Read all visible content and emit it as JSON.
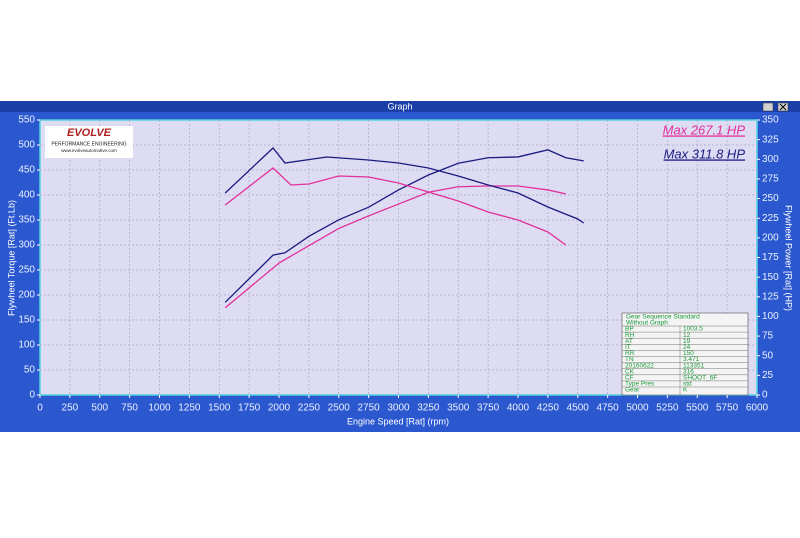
{
  "window": {
    "title": "Graph"
  },
  "logo": {
    "brand": "EVOLVE",
    "tagline": "PERFORMANCE ENGINEERING",
    "url": "www.evolveautomotive.com"
  },
  "info_table": {
    "header": [
      "Gear Sequence Standard",
      "Without Graph"
    ],
    "rows": [
      [
        "BP",
        "1003.5"
      ],
      [
        "RH",
        "12"
      ],
      [
        "AT",
        "19"
      ],
      [
        "IT",
        "24"
      ],
      [
        "RR",
        "150"
      ],
      [
        "TN",
        "3.471"
      ],
      [
        "20160622",
        "113351"
      ],
      [
        "CK",
        "316"
      ],
      [
        "CF",
        "SHOOT_6F"
      ],
      [
        "Type Pres",
        "std"
      ],
      [
        "Gear",
        "K"
      ]
    ]
  },
  "chart_data": {
    "type": "line",
    "xlabel": "Engine Speed [Rat] (rpm)",
    "ylabel": "Flywheel Torque [Rat] (Ft.Lb)",
    "y2label": "Flywheel Power [Rat] (HP)",
    "xlim": [
      0,
      6000
    ],
    "xticks": [
      0,
      250,
      500,
      750,
      1000,
      1250,
      1500,
      1750,
      2000,
      2250,
      2500,
      2750,
      3000,
      3250,
      3500,
      3750,
      4000,
      4250,
      4500,
      4750,
      5000,
      5250,
      5500,
      5750,
      6000
    ],
    "ylim": [
      0,
      550
    ],
    "yticks": [
      0,
      50,
      100,
      150,
      200,
      250,
      300,
      350,
      400,
      450,
      500,
      550
    ],
    "y2lim": [
      0,
      350
    ],
    "y2ticks": [
      0,
      25,
      50,
      75,
      100,
      125,
      150,
      175,
      200,
      225,
      250,
      275,
      300,
      325,
      350
    ],
    "grid": true,
    "series": [
      {
        "name": "Max 267.1 HP",
        "color": "#e0309a",
        "axis": "y2",
        "x": [
          1550,
          2000,
          2250,
          2500,
          2750,
          3000,
          3250,
          3500,
          3750,
          4000,
          4250,
          4400
        ],
        "values": [
          111,
          168,
          190,
          212,
          228,
          243,
          258,
          265,
          266,
          266,
          261,
          256
        ]
      },
      {
        "name": "Max 311.8 HP",
        "color": "#1a1a80",
        "axis": "y2",
        "x": [
          1550,
          1950,
          2050,
          2250,
          2500,
          2750,
          3000,
          3250,
          3500,
          3750,
          4000,
          4250,
          4400,
          4550
        ],
        "values": [
          118,
          178,
          181,
          202,
          223,
          239,
          261,
          280,
          295,
          302,
          303,
          312,
          302,
          298
        ]
      },
      {
        "color": "#e0309a",
        "axis": "y",
        "x": [
          1550,
          1950,
          2100,
          2250,
          2500,
          2750,
          3000,
          3250,
          3500,
          3750,
          4000,
          4250,
          4400
        ],
        "values": [
          380,
          454,
          420,
          422,
          438,
          436,
          424,
          406,
          388,
          366,
          350,
          326,
          300
        ]
      },
      {
        "color": "#1a1a80",
        "axis": "y",
        "x": [
          1550,
          1950,
          2050,
          2400,
          2750,
          3000,
          3250,
          3500,
          3750,
          4000,
          4250,
          4500,
          4550
        ],
        "values": [
          404,
          494,
          464,
          476,
          470,
          464,
          454,
          438,
          420,
          404,
          376,
          352,
          344
        ]
      }
    ]
  }
}
